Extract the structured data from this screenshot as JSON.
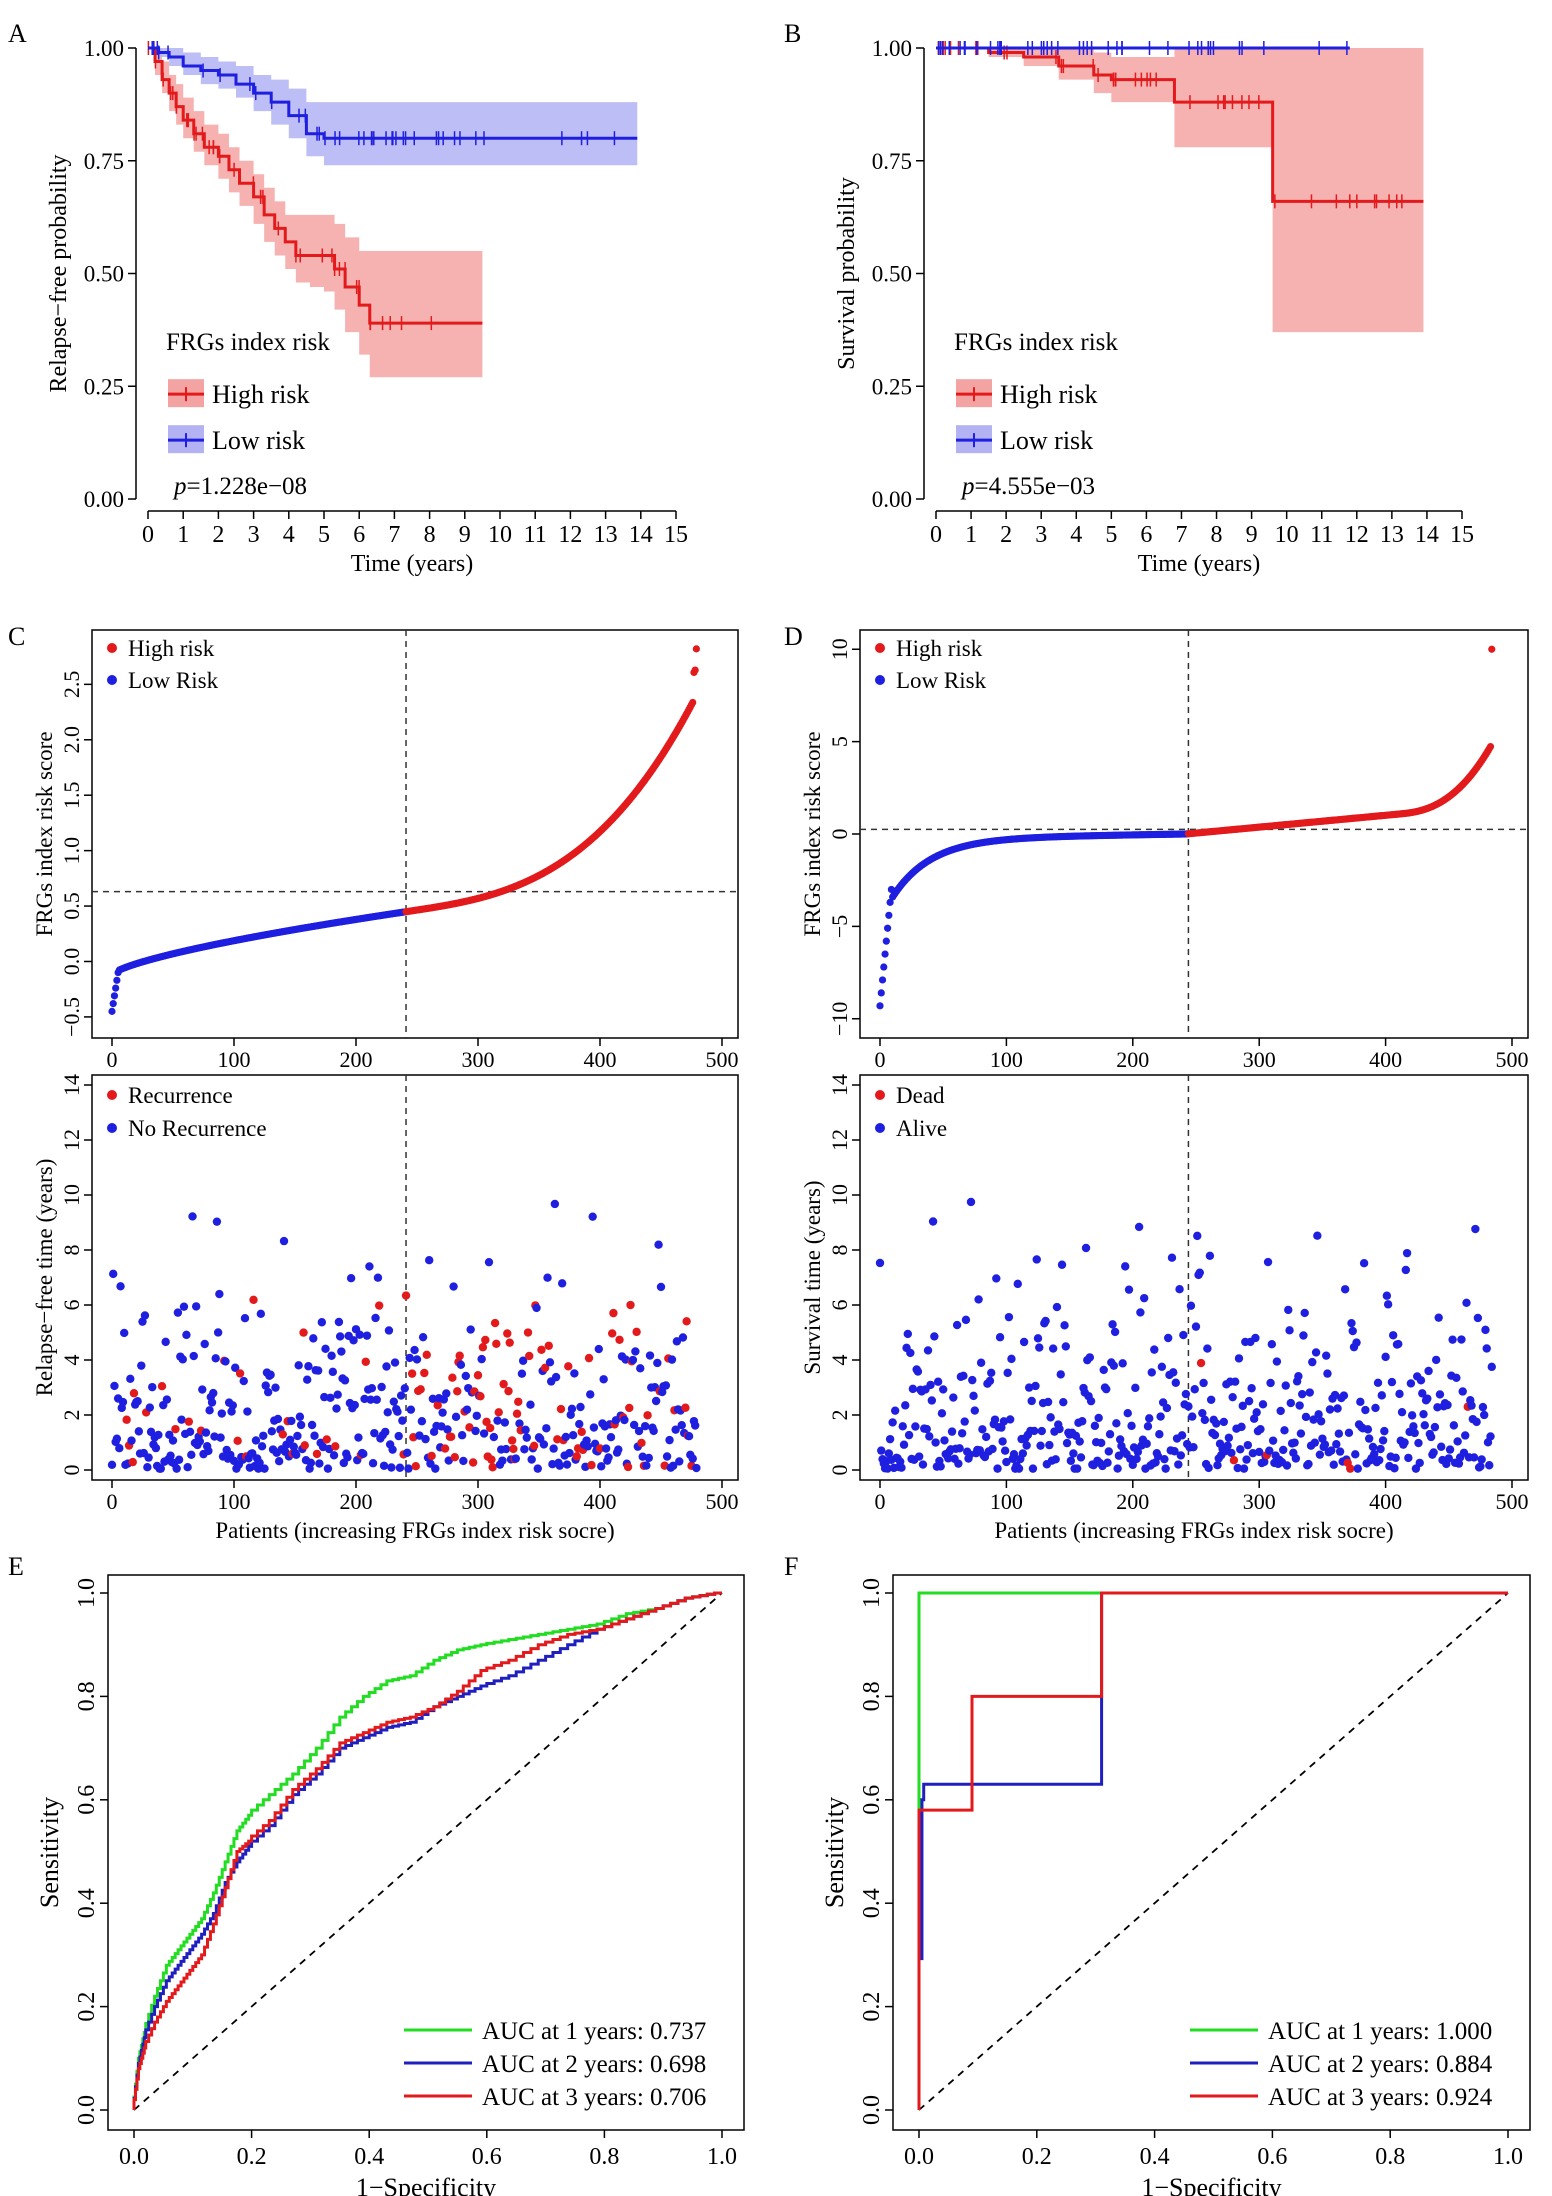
{
  "chart_data": [
    {
      "panel": "A",
      "type": "line",
      "subtype": "kaplan-meier",
      "xlabel": "Time (years)",
      "ylabel": "Relapse−free probability",
      "xlim": [
        0,
        15
      ],
      "ylim": [
        0,
        1
      ],
      "x_ticks": [
        "0",
        "1",
        "2",
        "3",
        "4",
        "5",
        "6",
        "7",
        "8",
        "9",
        "10",
        "11",
        "12",
        "13",
        "14",
        "15"
      ],
      "y_ticks": [
        "0.00",
        "0.25",
        "0.50",
        "0.75",
        "1.00"
      ],
      "legend_title": "FRGs index risk",
      "legend": [
        "High risk",
        "Low risk"
      ],
      "p_label": "p",
      "p_value": "=1.228e−08",
      "series": [
        {
          "name": "High risk",
          "color": "#e31a1c",
          "band": "#f4a3a3",
          "x": [
            0,
            0.2,
            0.4,
            0.6,
            0.8,
            1.0,
            1.3,
            1.6,
            2.0,
            2.3,
            2.6,
            3.0,
            3.3,
            3.6,
            3.9,
            4.2,
            4.6,
            5.0,
            5.3,
            5.6,
            6.0,
            6.3,
            6.6,
            7.0,
            8.0,
            9.0,
            9.5
          ],
          "y": [
            1.0,
            0.97,
            0.93,
            0.9,
            0.87,
            0.84,
            0.81,
            0.78,
            0.76,
            0.73,
            0.7,
            0.67,
            0.63,
            0.6,
            0.57,
            0.54,
            0.54,
            0.54,
            0.51,
            0.47,
            0.43,
            0.39,
            0.39,
            0.39,
            0.39,
            0.39,
            0.39
          ],
          "lower": [
            1.0,
            0.94,
            0.9,
            0.86,
            0.83,
            0.8,
            0.77,
            0.74,
            0.71,
            0.68,
            0.65,
            0.61,
            0.57,
            0.54,
            0.51,
            0.48,
            0.47,
            0.46,
            0.42,
            0.37,
            0.32,
            0.27,
            0.27,
            0.27,
            0.27,
            0.27,
            0.27
          ],
          "upper": [
            1.0,
            1.0,
            0.97,
            0.94,
            0.92,
            0.89,
            0.86,
            0.83,
            0.81,
            0.78,
            0.75,
            0.72,
            0.69,
            0.66,
            0.63,
            0.63,
            0.63,
            0.63,
            0.61,
            0.58,
            0.55,
            0.55,
            0.55,
            0.55,
            0.55,
            0.55,
            0.55
          ]
        },
        {
          "name": "Low risk",
          "color": "#1f1fe0",
          "band": "#b3b3f4",
          "x": [
            0,
            0.3,
            0.6,
            1.0,
            1.5,
            2.0,
            2.5,
            3.0,
            3.5,
            4.0,
            4.5,
            5.0,
            6.0,
            8.0,
            10.0,
            12.0,
            13.9
          ],
          "y": [
            1.0,
            0.99,
            0.98,
            0.96,
            0.95,
            0.94,
            0.92,
            0.9,
            0.88,
            0.85,
            0.81,
            0.8,
            0.8,
            0.8,
            0.8,
            0.8,
            0.8
          ],
          "lower": [
            1.0,
            0.98,
            0.96,
            0.94,
            0.92,
            0.91,
            0.89,
            0.86,
            0.83,
            0.8,
            0.76,
            0.74,
            0.74,
            0.74,
            0.74,
            0.74,
            0.74
          ],
          "upper": [
            1.0,
            1.0,
            1.0,
            0.99,
            0.98,
            0.97,
            0.96,
            0.94,
            0.93,
            0.91,
            0.88,
            0.88,
            0.88,
            0.88,
            0.88,
            0.88,
            0.88
          ]
        }
      ]
    },
    {
      "panel": "B",
      "type": "line",
      "subtype": "kaplan-meier",
      "xlabel": "Time (years)",
      "ylabel": "Survival probability",
      "xlim": [
        0,
        15
      ],
      "ylim": [
        0,
        1
      ],
      "x_ticks": [
        "0",
        "1",
        "2",
        "3",
        "4",
        "5",
        "6",
        "7",
        "8",
        "9",
        "10",
        "11",
        "12",
        "13",
        "14",
        "15"
      ],
      "y_ticks": [
        "0.00",
        "0.25",
        "0.50",
        "0.75",
        "1.00"
      ],
      "legend_title": "FRGs index risk",
      "legend": [
        "High risk",
        "Low risk"
      ],
      "p_label": "p",
      "p_value": "=4.555e−03",
      "series": [
        {
          "name": "High risk",
          "color": "#e31a1c",
          "band": "#f4a3a3",
          "x": [
            0,
            1.5,
            2.5,
            3.5,
            4.5,
            5.0,
            6.0,
            6.8,
            8.0,
            9.6,
            10.5,
            12.0,
            13.0,
            13.9
          ],
          "y": [
            1.0,
            0.99,
            0.98,
            0.96,
            0.94,
            0.93,
            0.93,
            0.88,
            0.88,
            0.66,
            0.66,
            0.66,
            0.66,
            0.66
          ],
          "lower": [
            1.0,
            0.98,
            0.96,
            0.93,
            0.9,
            0.88,
            0.88,
            0.78,
            0.78,
            0.37,
            0.37,
            0.37,
            0.37,
            0.37
          ],
          "upper": [
            1.0,
            1.0,
            1.0,
            1.0,
            0.99,
            0.98,
            0.98,
            1.0,
            1.0,
            1.0,
            1.0,
            1.0,
            1.0,
            1.0
          ]
        },
        {
          "name": "Low risk",
          "color": "#1f1fe0",
          "band": "#b3b3f4",
          "x": [
            0,
            2,
            4,
            6,
            8,
            10,
            11.8
          ],
          "y": [
            1.0,
            1.0,
            1.0,
            1.0,
            1.0,
            1.0,
            1.0
          ],
          "lower": [
            1.0,
            1.0,
            1.0,
            1.0,
            1.0,
            1.0,
            1.0
          ],
          "upper": [
            1.0,
            1.0,
            1.0,
            1.0,
            1.0,
            1.0,
            1.0
          ]
        }
      ]
    },
    {
      "panel": "C",
      "type": "scatter",
      "subtype": "risk-score",
      "xlabel": "",
      "ylabel": "FRGs index risk score",
      "xlim": [
        0,
        500
      ],
      "ylim": [
        -0.6,
        2.9
      ],
      "x_ticks": [
        "0",
        "100",
        "200",
        "300",
        "400",
        "500"
      ],
      "y_ticks": [
        "−0.5",
        "0.0",
        "0.5",
        "1.0",
        "1.5",
        "2.0",
        "2.5"
      ],
      "n": 480,
      "cutoff_index": 241,
      "cutoff_value": 0.63,
      "legend": [
        "High risk",
        "Low Risk"
      ]
    },
    {
      "panel": "D",
      "type": "scatter",
      "subtype": "risk-score",
      "xlabel": "",
      "ylabel": "FRGs index risk score",
      "xlim": [
        0,
        500
      ],
      "ylim": [
        -10.5,
        10.5
      ],
      "x_ticks": [
        "0",
        "100",
        "200",
        "300",
        "400",
        "500"
      ],
      "y_ticks": [
        "−10",
        "−5",
        "0",
        "5",
        "10"
      ],
      "n": 485,
      "cutoff_index": 244,
      "cutoff_value": 0.25,
      "max_point": 10.0,
      "legend": [
        "High risk",
        "Low Risk"
      ]
    },
    {
      "panel": "C2",
      "type": "scatter",
      "subtype": "status",
      "xlabel": "Patients (increasing FRGs index risk socre)",
      "ylabel": "Relapse−free time (years)",
      "xlim": [
        0,
        500
      ],
      "ylim": [
        0,
        14
      ],
      "x_ticks": [
        "0",
        "100",
        "200",
        "300",
        "400",
        "500"
      ],
      "y_ticks": [
        "0",
        "2",
        "4",
        "6",
        "8",
        "10",
        "12",
        "14"
      ],
      "cutoff_index": 241,
      "legend": [
        "Recurrence",
        "No Recurrence"
      ]
    },
    {
      "panel": "D2",
      "type": "scatter",
      "subtype": "status",
      "xlabel": "Patients (increasing FRGs index risk socre)",
      "ylabel": "Survival time (years)",
      "xlim": [
        0,
        500
      ],
      "ylim": [
        0,
        14
      ],
      "x_ticks": [
        "0",
        "100",
        "200",
        "300",
        "400",
        "500"
      ],
      "y_ticks": [
        "0",
        "2",
        "4",
        "6",
        "8",
        "10",
        "12",
        "14"
      ],
      "cutoff_index": 244,
      "legend": [
        "Dead",
        "Alive"
      ]
    },
    {
      "panel": "E",
      "type": "line",
      "subtype": "roc",
      "xlabel": "1−Specificity",
      "ylabel": "Sensitivity",
      "xlim": [
        0,
        1
      ],
      "ylim": [
        0,
        1
      ],
      "x_ticks": [
        "0.0",
        "0.2",
        "0.4",
        "0.6",
        "0.8",
        "1.0"
      ],
      "y_ticks": [
        "0.0",
        "0.2",
        "0.4",
        "0.6",
        "0.8",
        "1.0"
      ],
      "series": [
        {
          "name": "AUC at 1 years: 0.737",
          "color": "#22dd22",
          "x": [
            0,
            0.01,
            0.02,
            0.04,
            0.06,
            0.08,
            0.1,
            0.12,
            0.14,
            0.16,
            0.18,
            0.2,
            0.24,
            0.28,
            0.32,
            0.36,
            0.4,
            0.44,
            0.48,
            0.52,
            0.56,
            0.6,
            0.65,
            0.7,
            0.75,
            0.8,
            0.85,
            0.9,
            0.95,
            1.0
          ],
          "y": [
            0,
            0.1,
            0.15,
            0.22,
            0.28,
            0.31,
            0.34,
            0.37,
            0.42,
            0.48,
            0.54,
            0.57,
            0.61,
            0.65,
            0.7,
            0.76,
            0.8,
            0.83,
            0.84,
            0.87,
            0.89,
            0.9,
            0.91,
            0.92,
            0.93,
            0.94,
            0.96,
            0.97,
            0.99,
            1.0
          ]
        },
        {
          "name": "AUC at 2 years: 0.698",
          "color": "#1f1fbf",
          "x": [
            0,
            0.01,
            0.02,
            0.04,
            0.06,
            0.08,
            0.1,
            0.12,
            0.14,
            0.16,
            0.18,
            0.2,
            0.24,
            0.28,
            0.32,
            0.36,
            0.4,
            0.44,
            0.48,
            0.52,
            0.56,
            0.6,
            0.65,
            0.7,
            0.75,
            0.8,
            0.85,
            0.9,
            0.95,
            1.0
          ],
          "y": [
            0,
            0.09,
            0.14,
            0.2,
            0.25,
            0.28,
            0.31,
            0.34,
            0.38,
            0.44,
            0.48,
            0.51,
            0.55,
            0.61,
            0.65,
            0.7,
            0.72,
            0.74,
            0.75,
            0.78,
            0.8,
            0.82,
            0.84,
            0.87,
            0.9,
            0.93,
            0.95,
            0.97,
            0.99,
            1.0
          ]
        },
        {
          "name": "AUC at 3 years: 0.706",
          "color": "#e31a1c",
          "x": [
            0,
            0.01,
            0.02,
            0.04,
            0.06,
            0.08,
            0.1,
            0.12,
            0.14,
            0.16,
            0.18,
            0.2,
            0.24,
            0.28,
            0.32,
            0.36,
            0.4,
            0.44,
            0.48,
            0.52,
            0.56,
            0.6,
            0.65,
            0.7,
            0.75,
            0.8,
            0.85,
            0.9,
            0.95,
            1.0
          ],
          "y": [
            0,
            0.08,
            0.12,
            0.17,
            0.21,
            0.24,
            0.27,
            0.3,
            0.36,
            0.43,
            0.5,
            0.52,
            0.56,
            0.62,
            0.66,
            0.71,
            0.73,
            0.75,
            0.76,
            0.78,
            0.81,
            0.85,
            0.87,
            0.9,
            0.92,
            0.93,
            0.95,
            0.97,
            0.99,
            1.0
          ]
        }
      ]
    },
    {
      "panel": "F",
      "type": "line",
      "subtype": "roc",
      "xlabel": "1−Specificity",
      "ylabel": "Sensitivity",
      "xlim": [
        0,
        1
      ],
      "ylim": [
        0,
        1
      ],
      "x_ticks": [
        "0.0",
        "0.2",
        "0.4",
        "0.6",
        "0.8",
        "1.0"
      ],
      "y_ticks": [
        "0.0",
        "0.2",
        "0.4",
        "0.6",
        "0.8",
        "1.0"
      ],
      "series": [
        {
          "name": "AUC at 1 years: 1.000",
          "color": "#22dd22",
          "x": [
            0,
            0,
            1.0
          ],
          "y": [
            0,
            1.0,
            1.0
          ]
        },
        {
          "name": "AUC at 2 years: 0.884",
          "color": "#1f1fbf",
          "x": [
            0.005,
            0.005,
            0.008,
            0.008,
            0.31,
            0.31,
            1.0
          ],
          "y": [
            0.29,
            0.6,
            0.6,
            0.63,
            0.63,
            1.0,
            1.0
          ]
        },
        {
          "name": "AUC at 3 years: 0.924",
          "color": "#e31a1c",
          "x": [
            0,
            0,
            0.09,
            0.09,
            0.31,
            0.31,
            1.0
          ],
          "y": [
            0,
            0.58,
            0.58,
            0.8,
            0.8,
            1.0,
            1.0
          ]
        }
      ]
    }
  ],
  "panel_labels": {
    "A": "A",
    "B": "B",
    "C": "C",
    "D": "D",
    "E": "E",
    "F": "F"
  }
}
